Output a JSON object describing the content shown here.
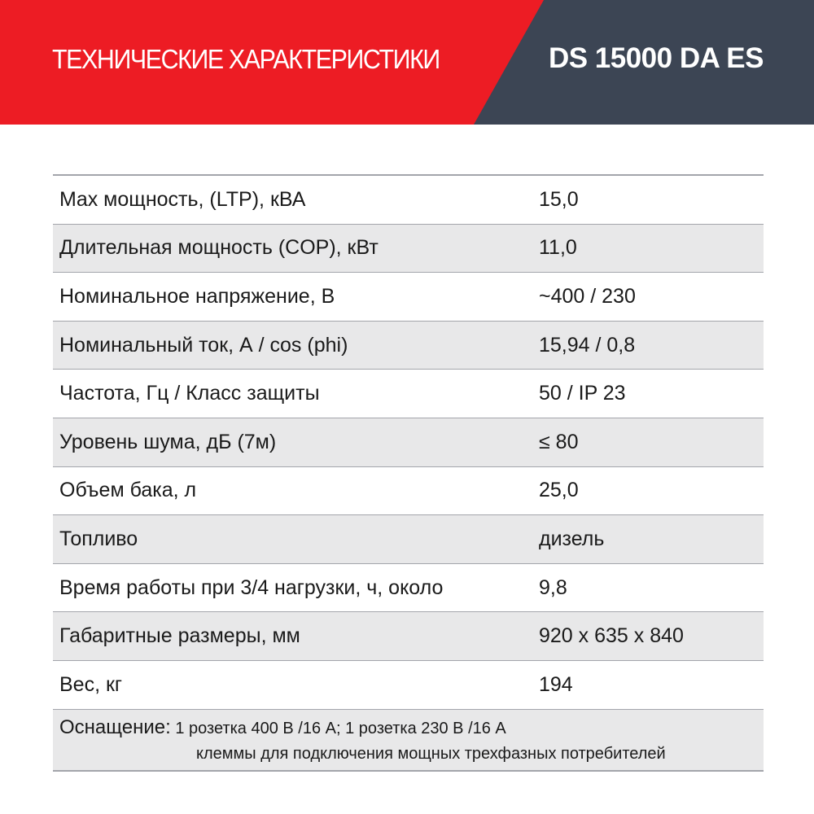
{
  "header": {
    "title": "ТЕХНИЧЕСКИЕ ХАРАКТЕРИСТИКИ",
    "model": "DS 15000 DA ES",
    "colors": {
      "red": "#ed1c24",
      "dark": "#3c4554"
    }
  },
  "specs": [
    {
      "label": "Max мощность, (LTP), кВА",
      "value": "15,0"
    },
    {
      "label": "Длительная мощность (COP), кВт",
      "value": "11,0"
    },
    {
      "label": "Номинальное напряжение, В",
      "value": "~400 / 230"
    },
    {
      "label": "Номинальный ток, А / cos (phi)",
      "value": "15,94 / 0,8"
    },
    {
      "label": "Частота, Гц / Класс защиты",
      "value": "50 / IP 23"
    },
    {
      "label": "Уровень шума, дБ (7м)",
      "value": "≤ 80"
    },
    {
      "label": "Объем бака, л",
      "value": "25,0"
    },
    {
      "label": "Топливо",
      "value": "дизель"
    },
    {
      "label": "Время работы при 3/4 нагрузки, ч, около",
      "value": "9,8"
    },
    {
      "label": "Габаритные размеры, мм",
      "value": "920 x 635 x 840"
    },
    {
      "label": "Вес, кг",
      "value": "194"
    }
  ],
  "equipment": {
    "label": "Оснащение:",
    "line1": "1 розетка 400 В /16 А; 1 розетка 230 В /16 А",
    "line2": "клеммы для подключения мощных трехфазных потребителей"
  }
}
